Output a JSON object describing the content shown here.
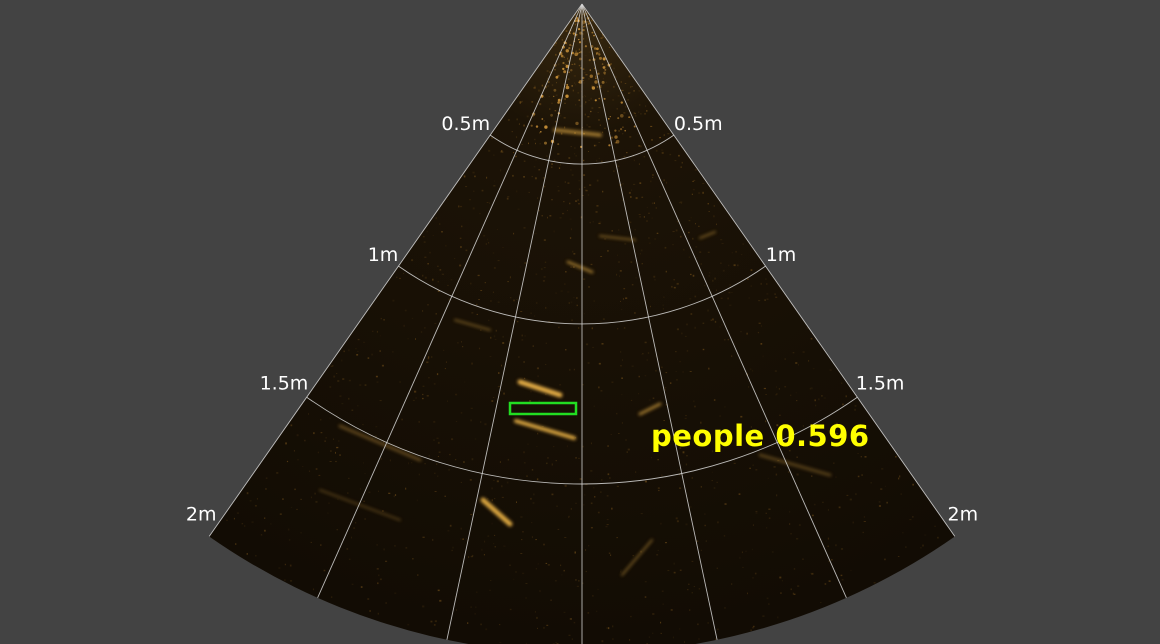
{
  "sonar": {
    "range_labels": [
      "0.5m",
      "1m",
      "1.5m",
      "2m"
    ],
    "background_color": "#434343",
    "fan_color": "#140d04",
    "echo_color": "#f0b648",
    "grid_color": "#d9d9d9"
  },
  "detection": {
    "label": "people 0.596",
    "class_name": "people",
    "confidence": 0.596,
    "box_color": "#22dd22",
    "label_color": "#ffff00"
  }
}
